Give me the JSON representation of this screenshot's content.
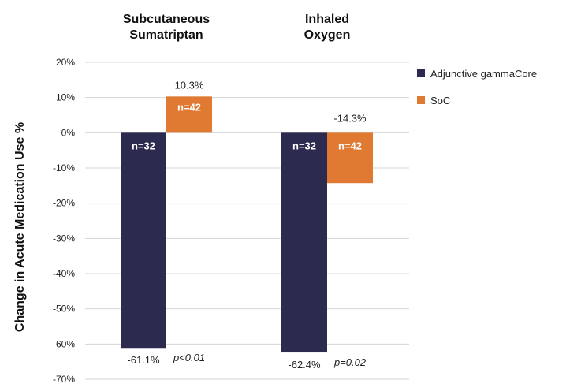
{
  "chart_data": {
    "type": "bar",
    "title": "",
    "xlabel": "",
    "ylabel": "Change in Acute Medication Use %",
    "ylim": [
      -70,
      20
    ],
    "yticks": [
      20,
      10,
      0,
      -10,
      -20,
      -30,
      -40,
      -50,
      -60,
      -70
    ],
    "ytick_labels": [
      "20%",
      "10%",
      "0%",
      "-10%",
      "-20%",
      "-30%",
      "-40%",
      "-50%",
      "-60%",
      "-70%"
    ],
    "grid": true,
    "legend_position": "right",
    "categories": [
      {
        "lines": [
          "Subcutaneous",
          "Sumatriptan"
        ],
        "p_value": "p<0.01"
      },
      {
        "lines": [
          "Inhaled",
          "Oxygen"
        ],
        "p_value": "p=0.02"
      }
    ],
    "series": [
      {
        "name": "Adjunctive gammaCore",
        "color": "#2c2a4f",
        "values": [
          -61.1,
          -62.4
        ],
        "value_labels": [
          "-61.1%",
          "-62.4%"
        ],
        "n_labels": [
          "n=32",
          "n=32"
        ]
      },
      {
        "name": "SoC",
        "color": "#e07a32",
        "values": [
          10.3,
          -14.3
        ],
        "value_labels": [
          "10.3%",
          "-14.3%"
        ],
        "n_labels": [
          "n=42",
          "n=42"
        ]
      }
    ]
  }
}
